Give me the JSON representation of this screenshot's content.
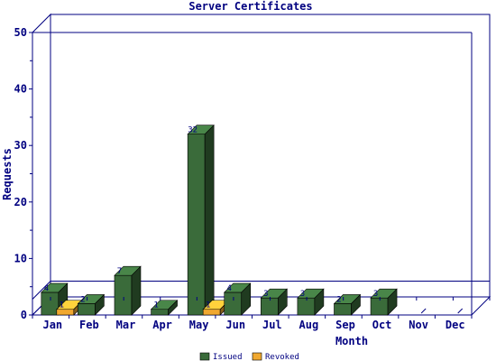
{
  "chart_data": {
    "type": "bar",
    "title": "Server Certificates",
    "xlabel": "Month",
    "ylabel": "Requests",
    "ylim": [
      0,
      50
    ],
    "yticks": [
      "0",
      "10",
      "20",
      "30",
      "40",
      "50"
    ],
    "categories": [
      "Jan",
      "Feb",
      "Mar",
      "Apr",
      "May",
      "Jun",
      "Jul",
      "Aug",
      "Sep",
      "Oct",
      "Nov",
      "Dec"
    ],
    "series": [
      {
        "name": "Issued",
        "values": [
          4,
          2,
          7,
          1,
          32,
          4,
          3,
          3,
          2,
          3,
          null,
          null
        ],
        "labels": [
          "4",
          "2",
          "7",
          "1",
          "32",
          "4",
          "3",
          "3",
          "2",
          "3",
          "",
          ""
        ],
        "color": "#3a6b3a"
      },
      {
        "name": "Revoked",
        "values": [
          1,
          0,
          0,
          0,
          1,
          0,
          0,
          0,
          0,
          0,
          null,
          null
        ],
        "labels": [
          "1",
          "",
          "",
          "",
          "1",
          "",
          "",
          "",
          "",
          "",
          "",
          ""
        ],
        "color": "#f0a830"
      }
    ],
    "grid": false,
    "legend": "bottom-center",
    "reference_line": 2.8
  }
}
